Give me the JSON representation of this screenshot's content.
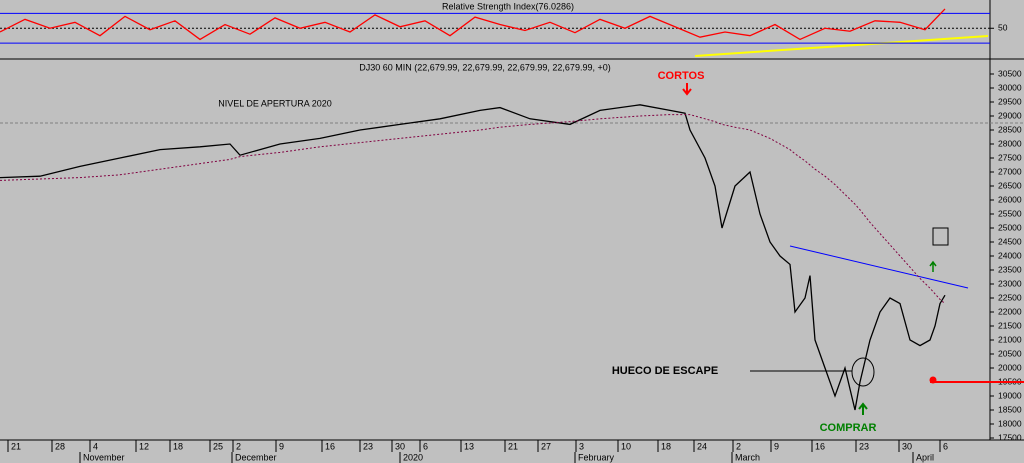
{
  "chart_data": [
    {
      "type": "line",
      "title": "Relative Strength Index(76.0286)",
      "x": [
        0,
        25,
        50,
        75,
        100,
        125,
        150,
        175,
        200,
        225,
        250,
        275,
        300,
        325,
        350,
        375,
        400,
        425,
        450,
        475,
        500,
        525,
        550,
        575,
        600,
        625,
        650,
        675,
        700,
        725,
        750,
        775,
        800,
        825,
        850,
        875,
        900,
        925,
        945
      ],
      "series": [
        {
          "name": "RSI",
          "color": "#ff0000",
          "values": [
            45,
            62,
            50,
            58,
            40,
            66,
            48,
            60,
            35,
            55,
            42,
            64,
            50,
            58,
            45,
            68,
            52,
            60,
            40,
            65,
            55,
            47,
            58,
            44,
            62,
            50,
            66,
            52,
            38,
            45,
            40,
            55,
            35,
            50,
            46,
            60,
            58,
            48,
            76
          ]
        }
      ],
      "xlim": [
        0,
        990
      ],
      "ylim": [
        10,
        88
      ],
      "yticks": [
        50
      ],
      "levels": [
        70,
        30
      ]
    },
    {
      "type": "line",
      "title": "DJ30 60 MIN (22,679.99, 22,679.99, 22,679.99, 22,679.99, +0)",
      "x": [
        0,
        40,
        80,
        120,
        160,
        200,
        230,
        240,
        280,
        320,
        360,
        400,
        440,
        480,
        500,
        530,
        570,
        600,
        640,
        670,
        685,
        690,
        705,
        715,
        722,
        735,
        750,
        760,
        770,
        780,
        790,
        795,
        805,
        810,
        815,
        825,
        835,
        845,
        855,
        860,
        870,
        880,
        890,
        900,
        910,
        920,
        930,
        935,
        940,
        945
      ],
      "series": [
        {
          "name": "DJ30",
          "color": "#000000",
          "values": [
            26800,
            26850,
            27200,
            27500,
            27800,
            27900,
            28000,
            27600,
            28000,
            28200,
            28500,
            28700,
            28900,
            29200,
            29300,
            28900,
            28700,
            29200,
            29400,
            29200,
            29100,
            28500,
            27500,
            26500,
            25000,
            26500,
            27000,
            25500,
            24500,
            24000,
            23700,
            22000,
            22500,
            23300,
            21000,
            20000,
            19000,
            20000,
            18500,
            19500,
            21000,
            22000,
            22500,
            22300,
            21000,
            20800,
            21000,
            21500,
            22300,
            22600
          ]
        },
        {
          "name": "MA",
          "color": "#800040",
          "values": [
            26700,
            26750,
            26800,
            26900,
            27100,
            27300,
            27450,
            27550,
            27700,
            27900,
            28050,
            28200,
            28350,
            28500,
            28600,
            28700,
            28800,
            28900,
            29000,
            29050,
            29050,
            29050,
            28900,
            28800,
            28700,
            28600,
            28500,
            28350,
            28200,
            28000,
            27800,
            27650,
            27400,
            27250,
            27100,
            26850,
            26550,
            26200,
            25850,
            25650,
            25200,
            24800,
            24400,
            24000,
            23600,
            23200,
            22850,
            22650,
            22450,
            22300
          ]
        }
      ],
      "xlim": [
        0,
        990
      ],
      "ylim": [
        17500,
        30500
      ],
      "yticks": [
        17500,
        18000,
        18500,
        19000,
        19500,
        20000,
        20500,
        21000,
        21500,
        22000,
        22500,
        23000,
        23500,
        24000,
        24500,
        25000,
        25500,
        26000,
        26500,
        27000,
        27500,
        28000,
        28500,
        29000,
        29500,
        30000,
        30500
      ],
      "xticks": [
        {
          "value": 8,
          "label": "21"
        },
        {
          "value": 52,
          "label": "28"
        },
        {
          "value": 90,
          "label": "4"
        },
        {
          "value": 136,
          "label": "12"
        },
        {
          "value": 170,
          "label": "18"
        },
        {
          "value": 210,
          "label": "25"
        },
        {
          "value": 233,
          "label": "2"
        },
        {
          "value": 276,
          "label": "9"
        },
        {
          "value": 322,
          "label": "16"
        },
        {
          "value": 360,
          "label": "23"
        },
        {
          "value": 392,
          "label": "30"
        },
        {
          "value": 420,
          "label": "6"
        },
        {
          "value": 461,
          "label": "13"
        },
        {
          "value": 505,
          "label": "21"
        },
        {
          "value": 538,
          "label": "27"
        },
        {
          "value": 576,
          "label": "3"
        },
        {
          "value": 618,
          "label": "10"
        },
        {
          "value": 658,
          "label": "18"
        },
        {
          "value": 694,
          "label": "24"
        },
        {
          "value": 733,
          "label": "2"
        },
        {
          "value": 771,
          "label": "9"
        },
        {
          "value": 812,
          "label": "16"
        },
        {
          "value": 856,
          "label": "23"
        },
        {
          "value": 899,
          "label": "30"
        },
        {
          "value": 940,
          "label": "6"
        }
      ],
      "months": [
        {
          "value": 80,
          "label": "November"
        },
        {
          "value": 232,
          "label": "December"
        },
        {
          "value": 400,
          "label": "2020"
        },
        {
          "value": 575,
          "label": "February"
        },
        {
          "value": 732,
          "label": "March"
        },
        {
          "value": 913,
          "label": "April"
        }
      ],
      "opening_level": 28750,
      "opening_label": "NIVEL DE APERTURA 2020",
      "support_level": 19500,
      "annotations": {
        "sell": "CORTOS",
        "buy": "COMPRAR",
        "gap": "HUECO DE ESCAPE"
      }
    }
  ]
}
